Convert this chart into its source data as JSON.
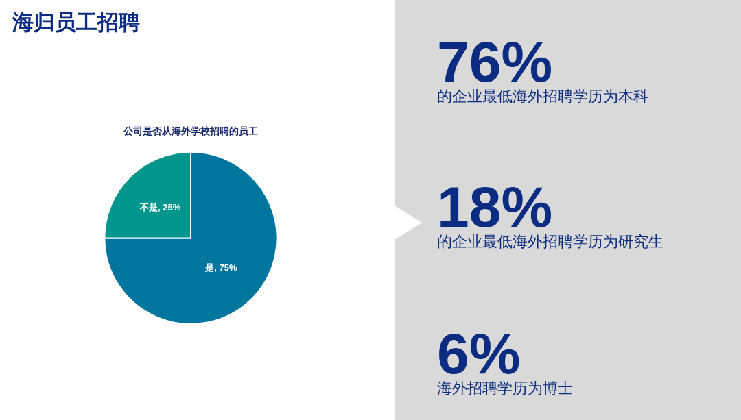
{
  "chart_data": [
    {
      "type": "pie",
      "title": "海归员工招聘",
      "subtitle": "公司是否从海外学校招聘的员工",
      "categories": [
        "是",
        "不是"
      ],
      "values": [
        75,
        25
      ],
      "colors": [
        "#00769f",
        "#00968e"
      ],
      "value_labels": [
        "75%",
        "25%"
      ],
      "legend": false
    },
    {
      "type": "other",
      "annotations": [
        "76%",
        "的企业最低海外招聘学历为本科",
        "18%",
        "的企业最低海外招聘学历为研究生",
        "6%",
        "海外招聘学历为博士"
      ]
    }
  ]
}
